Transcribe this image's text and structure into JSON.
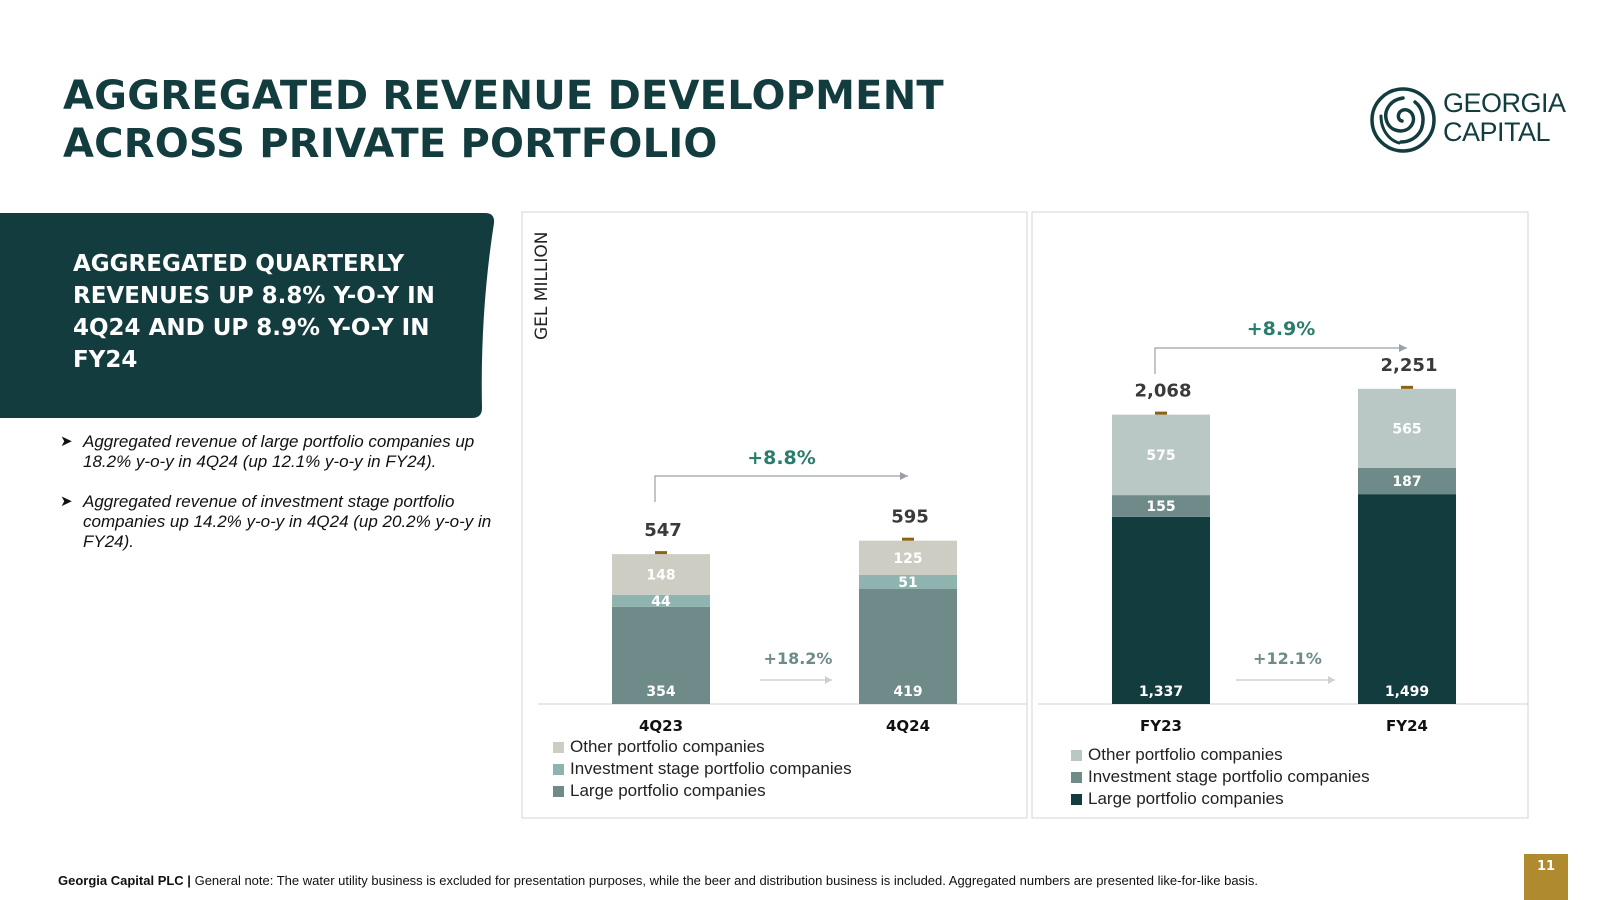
{
  "title": {
    "line1": "AGGREGATED REVENUE DEVELOPMENT",
    "line2": "ACROSS PRIVATE PORTFOLIO"
  },
  "logo": {
    "line1": "GEORGIA",
    "line2": "CAPITAL"
  },
  "banner": {
    "text": "AGGREGATED QUARTERLY REVENUES UP 8.8% Y-O-Y IN 4Q24 AND UP 8.9% Y-O-Y IN FY24"
  },
  "bullets": [
    "Aggregated revenue of large portfolio companies up 18.2% y-o-y in 4Q24 (up 12.1% y-o-y in FY24).",
    "Aggregated revenue of investment stage portfolio companies up 14.2% y-o-y in 4Q24 (up 20.2% y-o-y in FY24)."
  ],
  "footer": {
    "company": "Georgia Capital PLC |",
    "note": "General note: The water utility business is excluded for presentation purposes, while the beer and distribution business is included. Aggregated numbers are presented like-for-like basis."
  },
  "page_number": "11",
  "colors": {
    "dark_teal": "#133c3f",
    "accent_green": "#2a7d6b",
    "gold": "#b08a2e"
  },
  "chart_data": [
    {
      "type": "bar",
      "stacked": true,
      "ylabel": "GEL MILLION",
      "categories": [
        "4Q23",
        "4Q24"
      ],
      "series": [
        {
          "name": "Large portfolio companies",
          "values": [
            354,
            419
          ],
          "color": "#6e8b8a"
        },
        {
          "name": "Investment stage portfolio companies",
          "values": [
            44,
            51
          ],
          "color": "#8fb3ae"
        },
        {
          "name": "Other portfolio companies",
          "values": [
            148,
            125
          ],
          "color": "#cdcdc4"
        }
      ],
      "totals": [
        "547",
        "595"
      ],
      "labels": {
        "large": [
          "354",
          "419"
        ],
        "invest": [
          "44",
          "51"
        ],
        "other": [
          "148",
          "125"
        ]
      },
      "total_growth": "+8.8%",
      "large_growth": "+18.2%",
      "legend": [
        "Other portfolio companies",
        "Investment stage portfolio companies",
        "Large portfolio companies"
      ]
    },
    {
      "type": "bar",
      "stacked": true,
      "categories": [
        "FY23",
        "FY24"
      ],
      "series": [
        {
          "name": "Large portfolio companies",
          "values": [
            1337,
            1499
          ],
          "color": "#133c3f"
        },
        {
          "name": "Investment stage portfolio companies",
          "values": [
            155,
            187
          ],
          "color": "#6e8b8a"
        },
        {
          "name": "Other portfolio companies",
          "values": [
            575,
            565
          ],
          "color": "#b9c7c5"
        }
      ],
      "totals": [
        "2,068",
        "2,251"
      ],
      "labels": {
        "large": [
          "1,337",
          "1,499"
        ],
        "invest": [
          "155",
          "187"
        ],
        "other": [
          "575",
          "565"
        ]
      },
      "total_growth": "+8.9%",
      "large_growth": "+12.1%",
      "legend": [
        "Other portfolio companies",
        "Investment stage portfolio companies",
        "Large portfolio companies"
      ]
    }
  ]
}
